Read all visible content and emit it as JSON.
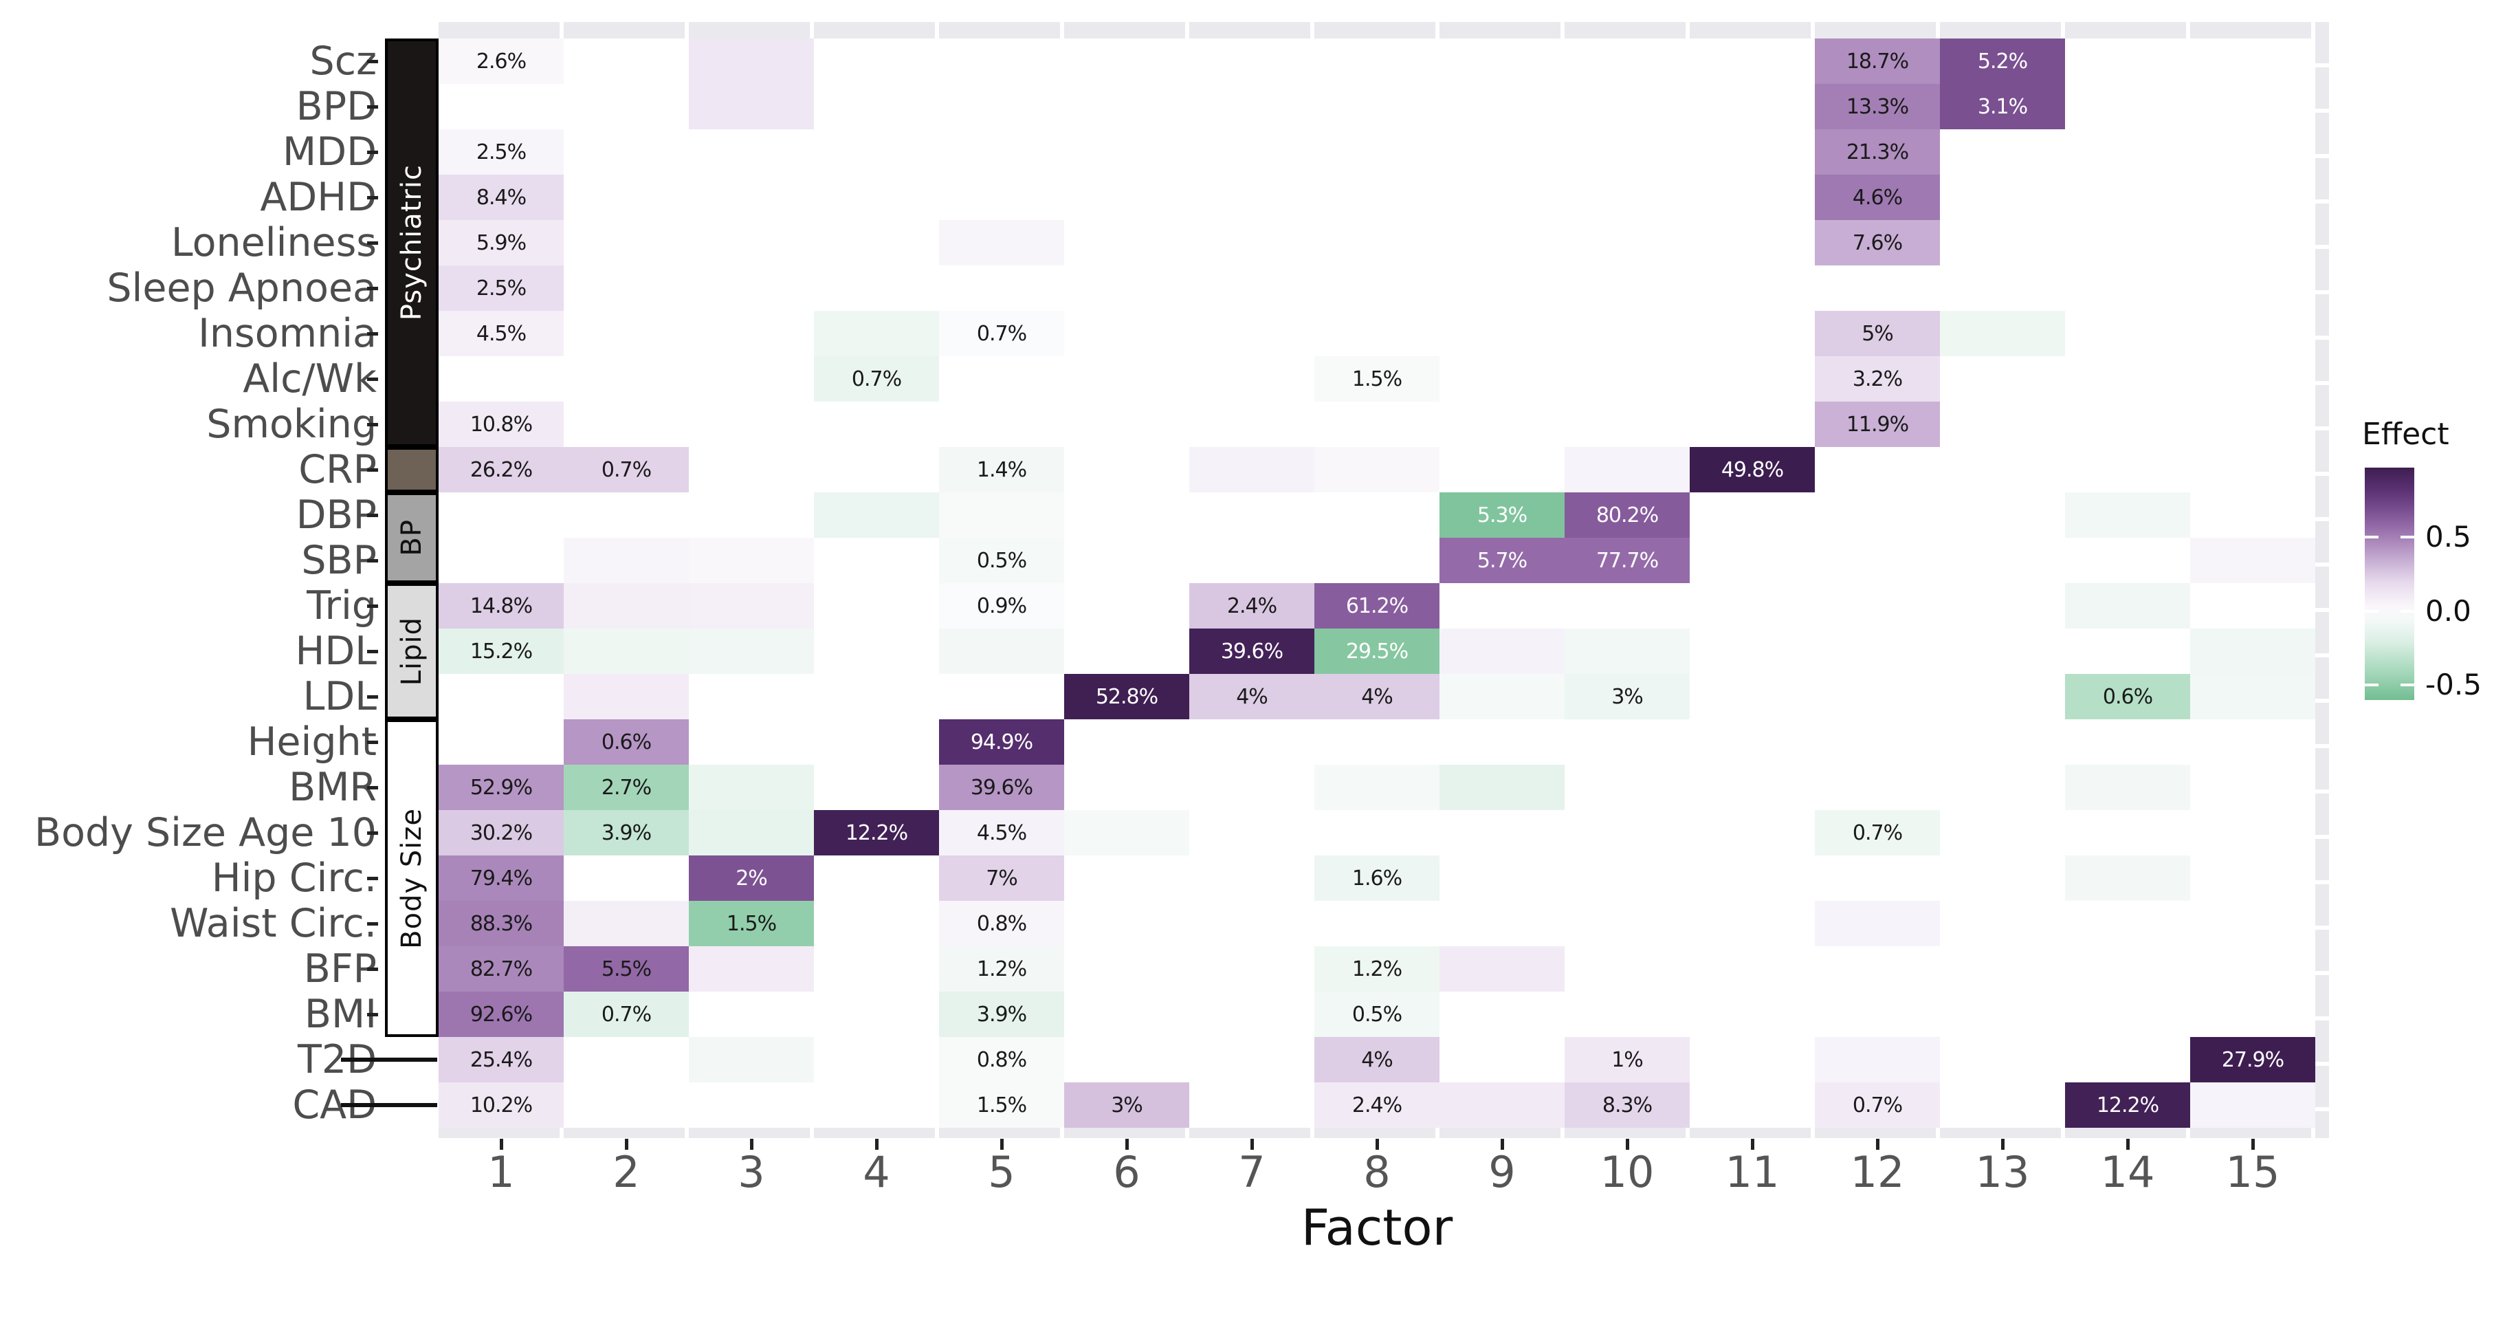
{
  "chart_data": {
    "type": "heatmap",
    "title": "",
    "xlabel": "Factor",
    "x_categories": [
      "1",
      "2",
      "3",
      "4",
      "5",
      "6",
      "7",
      "8",
      "9",
      "10",
      "11",
      "12",
      "13",
      "14",
      "15"
    ],
    "y_categories": [
      "Scz",
      "BPD",
      "MDD",
      "ADHD",
      "Loneliness",
      "Sleep Apnoea",
      "Insomnia",
      "Alc/Wk",
      "Smoking",
      "CRP",
      "DBP",
      "SBP",
      "Trig",
      "HDL",
      "LDL",
      "Height",
      "BMR",
      "Body Size Age 10",
      "Hip Circ.",
      "Waist Circ.",
      "BFP",
      "BMI",
      "T2D",
      "CAD"
    ],
    "row_groups": [
      {
        "label": "Psychiatric",
        "start": 0,
        "end": 8,
        "bg": "#1a1616",
        "fg": "#ffffff"
      },
      {
        "label": "",
        "start": 9,
        "end": 9,
        "bg": "#6e6156",
        "fg": "#ffffff"
      },
      {
        "label": "BP",
        "start": 10,
        "end": 11,
        "bg": "#a4a4a4",
        "fg": "#111111"
      },
      {
        "label": "Lipid",
        "start": 12,
        "end": 14,
        "bg": "#dcdcdc",
        "fg": "#111111"
      },
      {
        "label": "Body Size",
        "start": 15,
        "end": 21,
        "bg": "#ffffff",
        "fg": "#111111"
      }
    ],
    "dash_rows": [
      22,
      23
    ],
    "legend": {
      "title": "Effect",
      "position": "right",
      "tick_labels": [
        "0.5",
        "0.0",
        "-0.5"
      ],
      "tick_values": [
        0.5,
        0.0,
        -0.5
      ],
      "domain_top": 0.97,
      "domain_bottom": -0.6
    },
    "cells": [
      {
        "r": 0,
        "c": 1,
        "t": "2.6%",
        "v": 0.03
      },
      {
        "r": 0,
        "c": 3,
        "t": "",
        "v": 0.12
      },
      {
        "r": 0,
        "c": 12,
        "t": "18.7%",
        "v": 0.45
      },
      {
        "r": 0,
        "c": 13,
        "t": "5.2%",
        "v": 0.68,
        "w": true
      },
      {
        "r": 1,
        "c": 3,
        "t": "",
        "v": 0.12
      },
      {
        "r": 1,
        "c": 12,
        "t": "13.3%",
        "v": 0.5
      },
      {
        "r": 1,
        "c": 13,
        "t": "3.1%",
        "v": 0.68,
        "w": true
      },
      {
        "r": 2,
        "c": 1,
        "t": "2.5%",
        "v": 0.04
      },
      {
        "r": 2,
        "c": 12,
        "t": "21.3%",
        "v": 0.45
      },
      {
        "r": 3,
        "c": 1,
        "t": "8.4%",
        "v": 0.18
      },
      {
        "r": 3,
        "c": 12,
        "t": "4.6%",
        "v": 0.52
      },
      {
        "r": 4,
        "c": 1,
        "t": "5.9%",
        "v": 0.1
      },
      {
        "r": 4,
        "c": 5,
        "t": "",
        "v": 0.04
      },
      {
        "r": 4,
        "c": 12,
        "t": "7.6%",
        "v": 0.34
      },
      {
        "r": 5,
        "c": 1,
        "t": "2.5%",
        "v": 0.17
      },
      {
        "r": 6,
        "c": 1,
        "t": "4.5%",
        "v": 0.07
      },
      {
        "r": 6,
        "c": 4,
        "t": "",
        "v": -0.09
      },
      {
        "r": 6,
        "c": 5,
        "t": "0.7%",
        "v": -0.02
      },
      {
        "r": 6,
        "c": 12,
        "t": "5%",
        "v": 0.24
      },
      {
        "r": 6,
        "c": 13,
        "t": "",
        "v": -0.09
      },
      {
        "r": 7,
        "c": 4,
        "t": "0.7%",
        "v": -0.12
      },
      {
        "r": 7,
        "c": 8,
        "t": "1.5%",
        "v": -0.04
      },
      {
        "r": 7,
        "c": 12,
        "t": "3.2%",
        "v": 0.16
      },
      {
        "r": 8,
        "c": 1,
        "t": "10.8%",
        "v": 0.1
      },
      {
        "r": 8,
        "c": 12,
        "t": "11.9%",
        "v": 0.33
      },
      {
        "r": 9,
        "c": 1,
        "t": "26.2%",
        "v": 0.22
      },
      {
        "r": 9,
        "c": 2,
        "t": "0.7%",
        "v": 0.22
      },
      {
        "r": 9,
        "c": 5,
        "t": "1.4%",
        "v": -0.06
      },
      {
        "r": 9,
        "c": 7,
        "t": "",
        "v": 0.06
      },
      {
        "r": 9,
        "c": 8,
        "t": "",
        "v": 0.03
      },
      {
        "r": 9,
        "c": 10,
        "t": "",
        "v": 0.05
      },
      {
        "r": 9,
        "c": 11,
        "t": "49.8%",
        "v": 0.98,
        "w": true
      },
      {
        "r": 10,
        "c": 4,
        "t": "",
        "v": -0.11
      },
      {
        "r": 10,
        "c": 5,
        "t": "",
        "v": -0.04
      },
      {
        "r": 10,
        "c": 9,
        "t": "5.3%",
        "v": -0.55,
        "w": true
      },
      {
        "r": 10,
        "c": 10,
        "t": "80.2%",
        "v": 0.63,
        "w": true
      },
      {
        "r": 10,
        "c": 14,
        "t": "",
        "v": -0.07
      },
      {
        "r": 11,
        "c": 2,
        "t": "",
        "v": 0.04
      },
      {
        "r": 11,
        "c": 3,
        "t": "",
        "v": 0.03
      },
      {
        "r": 11,
        "c": 5,
        "t": "0.5%",
        "v": -0.05
      },
      {
        "r": 11,
        "c": 9,
        "t": "5.7%",
        "v": 0.57,
        "w": true
      },
      {
        "r": 11,
        "c": 10,
        "t": "77.7%",
        "v": 0.57,
        "w": true
      },
      {
        "r": 11,
        "c": 15,
        "t": "",
        "v": 0.04
      },
      {
        "r": 12,
        "c": 1,
        "t": "14.8%",
        "v": 0.24
      },
      {
        "r": 12,
        "c": 2,
        "t": "",
        "v": 0.08
      },
      {
        "r": 12,
        "c": 3,
        "t": "",
        "v": 0.07
      },
      {
        "r": 12,
        "c": 5,
        "t": "0.9%",
        "v": -0.02
      },
      {
        "r": 12,
        "c": 7,
        "t": "2.4%",
        "v": 0.26
      },
      {
        "r": 12,
        "c": 8,
        "t": "61.2%",
        "v": 0.62,
        "w": true
      },
      {
        "r": 12,
        "c": 14,
        "t": "",
        "v": -0.08
      },
      {
        "r": 13,
        "c": 1,
        "t": "15.2%",
        "v": -0.16
      },
      {
        "r": 13,
        "c": 2,
        "t": "",
        "v": -0.09
      },
      {
        "r": 13,
        "c": 3,
        "t": "",
        "v": -0.08
      },
      {
        "r": 13,
        "c": 5,
        "t": "",
        "v": -0.06
      },
      {
        "r": 13,
        "c": 7,
        "t": "39.6%",
        "v": 0.94,
        "w": true
      },
      {
        "r": 13,
        "c": 8,
        "t": "29.5%",
        "v": -0.53,
        "w": true
      },
      {
        "r": 13,
        "c": 9,
        "t": "",
        "v": 0.06
      },
      {
        "r": 13,
        "c": 10,
        "t": "",
        "v": -0.07
      },
      {
        "r": 13,
        "c": 15,
        "t": "",
        "v": -0.08
      },
      {
        "r": 14,
        "c": 2,
        "t": "",
        "v": 0.09
      },
      {
        "r": 14,
        "c": 6,
        "t": "52.8%",
        "v": 0.96,
        "w": true
      },
      {
        "r": 14,
        "c": 7,
        "t": "4%",
        "v": 0.24
      },
      {
        "r": 14,
        "c": 8,
        "t": "4%",
        "v": 0.24
      },
      {
        "r": 14,
        "c": 9,
        "t": "",
        "v": -0.05
      },
      {
        "r": 14,
        "c": 10,
        "t": "3%",
        "v": -0.1
      },
      {
        "r": 14,
        "c": 14,
        "t": "0.6%",
        "v": -0.35
      },
      {
        "r": 14,
        "c": 15,
        "t": "",
        "v": -0.07
      },
      {
        "r": 15,
        "c": 2,
        "t": "0.6%",
        "v": 0.42
      },
      {
        "r": 15,
        "c": 5,
        "t": "94.9%",
        "v": 0.85,
        "w": true
      },
      {
        "r": 16,
        "c": 1,
        "t": "52.9%",
        "v": 0.42
      },
      {
        "r": 16,
        "c": 2,
        "t": "2.7%",
        "v": -0.42
      },
      {
        "r": 16,
        "c": 3,
        "t": "",
        "v": -0.12
      },
      {
        "r": 16,
        "c": 5,
        "t": "39.6%",
        "v": 0.42
      },
      {
        "r": 16,
        "c": 8,
        "t": "",
        "v": -0.05
      },
      {
        "r": 16,
        "c": 9,
        "t": "",
        "v": -0.15
      },
      {
        "r": 16,
        "c": 14,
        "t": "",
        "v": -0.06
      },
      {
        "r": 17,
        "c": 1,
        "t": "30.2%",
        "v": 0.25
      },
      {
        "r": 17,
        "c": 2,
        "t": "3.9%",
        "v": -0.29
      },
      {
        "r": 17,
        "c": 3,
        "t": "",
        "v": -0.14
      },
      {
        "r": 17,
        "c": 4,
        "t": "12.2%",
        "v": 0.95,
        "w": true
      },
      {
        "r": 17,
        "c": 5,
        "t": "4.5%",
        "v": 0.06
      },
      {
        "r": 17,
        "c": 6,
        "t": "",
        "v": -0.05
      },
      {
        "r": 17,
        "c": 12,
        "t": "0.7%",
        "v": -0.09
      },
      {
        "r": 18,
        "c": 1,
        "t": "79.4%",
        "v": 0.47
      },
      {
        "r": 18,
        "c": 3,
        "t": "2%",
        "v": 0.67,
        "w": true
      },
      {
        "r": 18,
        "c": 5,
        "t": "7%",
        "v": 0.22
      },
      {
        "r": 18,
        "c": 8,
        "t": "1.6%",
        "v": -0.1
      },
      {
        "r": 18,
        "c": 14,
        "t": "",
        "v": -0.06
      },
      {
        "r": 19,
        "c": 1,
        "t": "88.3%",
        "v": 0.49
      },
      {
        "r": 19,
        "c": 2,
        "t": "",
        "v": 0.08
      },
      {
        "r": 19,
        "c": 3,
        "t": "1.5%",
        "v": -0.48
      },
      {
        "r": 19,
        "c": 5,
        "t": "0.8%",
        "v": 0.04
      },
      {
        "r": 19,
        "c": 12,
        "t": "",
        "v": 0.05
      },
      {
        "r": 20,
        "c": 1,
        "t": "82.7%",
        "v": 0.47
      },
      {
        "r": 20,
        "c": 2,
        "t": "5.5%",
        "v": 0.58
      },
      {
        "r": 20,
        "c": 3,
        "t": "",
        "v": 0.09
      },
      {
        "r": 20,
        "c": 5,
        "t": "1.2%",
        "v": -0.06
      },
      {
        "r": 20,
        "c": 8,
        "t": "1.2%",
        "v": -0.09
      },
      {
        "r": 20,
        "c": 9,
        "t": "",
        "v": 0.1
      },
      {
        "r": 21,
        "c": 1,
        "t": "92.6%",
        "v": 0.53
      },
      {
        "r": 21,
        "c": 2,
        "t": "0.7%",
        "v": -0.17
      },
      {
        "r": 21,
        "c": 5,
        "t": "3.9%",
        "v": -0.15
      },
      {
        "r": 21,
        "c": 8,
        "t": "0.5%",
        "v": -0.07
      },
      {
        "r": 22,
        "c": 1,
        "t": "25.4%",
        "v": 0.22
      },
      {
        "r": 22,
        "c": 3,
        "t": "",
        "v": -0.06
      },
      {
        "r": 22,
        "c": 5,
        "t": "0.8%",
        "v": -0.03
      },
      {
        "r": 22,
        "c": 8,
        "t": "4%",
        "v": 0.24
      },
      {
        "r": 22,
        "c": 10,
        "t": "1%",
        "v": 0.11
      },
      {
        "r": 22,
        "c": 12,
        "t": "",
        "v": 0.05
      },
      {
        "r": 22,
        "c": 15,
        "t": "27.9%",
        "v": 0.97,
        "w": true
      },
      {
        "r": 23,
        "c": 1,
        "t": "10.2%",
        "v": 0.11
      },
      {
        "r": 23,
        "c": 5,
        "t": "1.5%",
        "v": -0.03
      },
      {
        "r": 23,
        "c": 6,
        "t": "3%",
        "v": 0.28
      },
      {
        "r": 23,
        "c": 8,
        "t": "2.4%",
        "v": 0.1
      },
      {
        "r": 23,
        "c": 9,
        "t": "",
        "v": 0.1
      },
      {
        "r": 23,
        "c": 10,
        "t": "8.3%",
        "v": 0.21
      },
      {
        "r": 23,
        "c": 12,
        "t": "0.7%",
        "v": 0.1
      },
      {
        "r": 23,
        "c": 14,
        "t": "12.2%",
        "v": 0.95,
        "w": true
      },
      {
        "r": 23,
        "c": 15,
        "t": "",
        "v": 0.05
      }
    ],
    "colormap_anchors": [
      {
        "v": -0.8,
        "hex": "#4ea772"
      },
      {
        "v": -0.6,
        "hex": "#73bd92"
      },
      {
        "v": -0.4,
        "hex": "#a8d9bd"
      },
      {
        "v": -0.2,
        "hex": "#ddf0e6"
      },
      {
        "v": 0.0,
        "hex": "#fdfcfe"
      },
      {
        "v": 0.2,
        "hex": "#e6d9ec"
      },
      {
        "v": 0.4,
        "hex": "#bb9cc9"
      },
      {
        "v": 0.6,
        "hex": "#8d62a2"
      },
      {
        "v": 0.8,
        "hex": "#5e3478"
      },
      {
        "v": 1.0,
        "hex": "#381a4a"
      }
    ]
  },
  "style": {
    "panel_gray": "#e9e9ee",
    "row_label_color": "#4d4d4d",
    "x_tick_color": "#555555",
    "axis_title_color": "#111111",
    "tick_mark_color": "#222222"
  }
}
